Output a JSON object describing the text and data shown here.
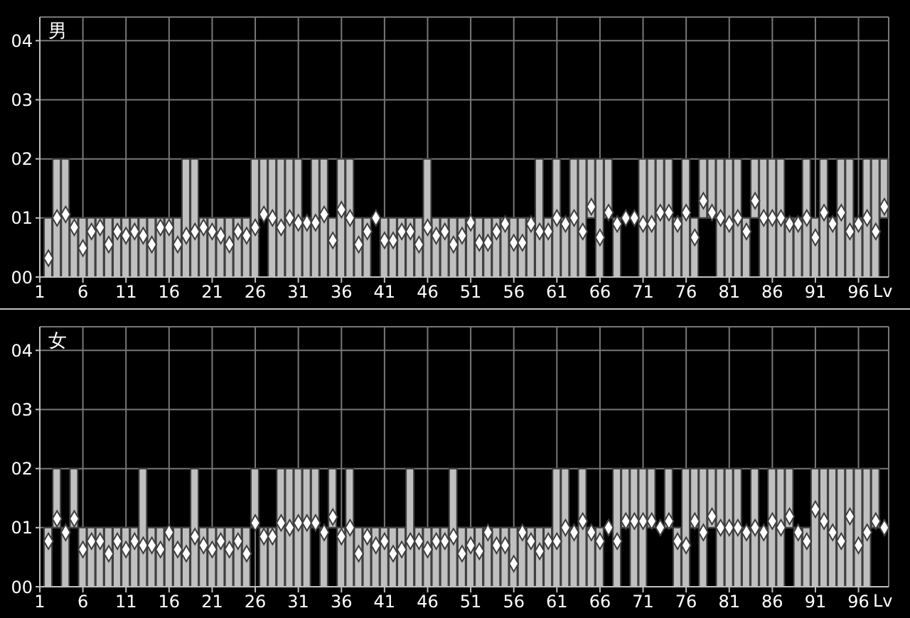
{
  "chart_data": [
    {
      "type": "bar",
      "title": "男",
      "xlabel": "Lv",
      "grid": true,
      "x": [
        2,
        3,
        4,
        5,
        6,
        7,
        8,
        9,
        10,
        11,
        12,
        13,
        14,
        15,
        16,
        17,
        18,
        19,
        20,
        21,
        22,
        23,
        24,
        25,
        26,
        27,
        28,
        29,
        30,
        31,
        32,
        33,
        34,
        35,
        36,
        37,
        38,
        39,
        40,
        41,
        42,
        43,
        44,
        45,
        46,
        47,
        48,
        49,
        50,
        51,
        52,
        53,
        54,
        55,
        56,
        57,
        58,
        59,
        60,
        61,
        62,
        63,
        64,
        65,
        66,
        67,
        68,
        69,
        70,
        71,
        72,
        73,
        74,
        75,
        76,
        77,
        78,
        79,
        80,
        81,
        82,
        83,
        84,
        85,
        86,
        87,
        88,
        89,
        90,
        91,
        92,
        93,
        94,
        95,
        96,
        97,
        98,
        99
      ],
      "xlim": [
        1,
        99.5
      ],
      "xticks": [
        1,
        6,
        11,
        16,
        21,
        26,
        31,
        36,
        41,
        46,
        51,
        56,
        61,
        66,
        71,
        76,
        81,
        86,
        91,
        96
      ],
      "ylim": [
        0,
        4.4
      ],
      "yticks": [
        {
          "value": 0,
          "label": "00"
        },
        {
          "value": 1,
          "label": "01"
        },
        {
          "value": 2,
          "label": "02"
        },
        {
          "value": 3,
          "label": "03"
        },
        {
          "value": 4,
          "label": "04"
        }
      ],
      "series": [
        {
          "color": "#c0c0c0",
          "base": [
            0,
            0,
            0,
            0,
            0,
            0,
            0,
            0,
            0,
            0,
            0,
            0,
            0,
            0,
            0,
            0,
            0,
            0,
            0,
            0,
            0,
            0,
            0,
            0,
            0,
            1,
            0,
            0,
            0,
            0,
            0,
            0,
            0,
            0,
            0,
            0,
            0,
            0,
            null,
            0,
            0,
            0,
            0,
            0,
            0,
            0,
            0,
            0,
            0,
            0,
            0,
            0,
            0,
            0,
            0,
            0,
            0,
            0,
            0,
            0,
            0,
            0,
            0,
            1,
            0,
            1,
            0,
            null,
            null,
            0,
            0,
            0,
            0,
            0,
            0,
            0,
            1,
            1,
            0,
            0,
            0,
            0,
            1,
            0,
            0,
            0,
            0,
            0,
            0,
            0,
            0,
            0,
            0,
            0,
            0,
            0,
            0,
            1
          ],
          "values": [
            1,
            2,
            2,
            1,
            1,
            1,
            1,
            1,
            1,
            1,
            1,
            1,
            1,
            1,
            1,
            1,
            2,
            2,
            1,
            1,
            1,
            1,
            1,
            1,
            2,
            1,
            2,
            2,
            2,
            2,
            1,
            2,
            2,
            1,
            2,
            2,
            1,
            1,
            null,
            1,
            1,
            1,
            1,
            1,
            2,
            1,
            1,
            1,
            1,
            1,
            1,
            1,
            1,
            1,
            1,
            1,
            1,
            2,
            1,
            2,
            1,
            2,
            2,
            1,
            2,
            1,
            1,
            null,
            null,
            2,
            2,
            2,
            2,
            1,
            2,
            1,
            1,
            1,
            2,
            2,
            2,
            1,
            1,
            2,
            2,
            2,
            1,
            1,
            2,
            1,
            2,
            1,
            2,
            2,
            1,
            2,
            2,
            1
          ]
        },
        {
          "type": "scatter",
          "color": "#ffffff",
          "marker": "diamond",
          "values": [
            0.32,
            1.0,
            1.06,
            0.84,
            0.49,
            0.77,
            0.84,
            0.55,
            0.77,
            0.7,
            0.77,
            0.7,
            0.55,
            0.84,
            0.84,
            0.55,
            0.7,
            0.77,
            0.84,
            0.77,
            0.7,
            0.55,
            0.77,
            0.7,
            0.84,
            1.06,
            1.0,
            0.84,
            1.0,
            0.92,
            0.92,
            0.92,
            1.06,
            0.62,
            1.14,
            1.0,
            0.55,
            0.77,
            1.0,
            0.62,
            0.62,
            0.77,
            0.77,
            0.55,
            0.84,
            0.7,
            0.77,
            0.55,
            0.7,
            0.92,
            0.58,
            0.58,
            0.77,
            0.9,
            0.58,
            0.58,
            0.9,
            0.77,
            0.77,
            1.0,
            0.9,
            1.0,
            0.77,
            1.19,
            0.67,
            1.09,
            0.9,
            1.0,
            1.0,
            0.9,
            0.9,
            1.09,
            1.09,
            0.9,
            1.09,
            0.67,
            1.29,
            1.09,
            1.0,
            0.9,
            1.0,
            0.77,
            1.29,
            1.0,
            1.0,
            1.0,
            0.9,
            0.9,
            1.0,
            0.67,
            1.09,
            0.9,
            1.09,
            0.77,
            0.9,
            1.0,
            0.77,
            1.19
          ]
        }
      ]
    },
    {
      "type": "bar",
      "title": "女",
      "xlabel": "Lv",
      "grid": true,
      "x": [
        2,
        3,
        4,
        5,
        6,
        7,
        8,
        9,
        10,
        11,
        12,
        13,
        14,
        15,
        16,
        17,
        18,
        19,
        20,
        21,
        22,
        23,
        24,
        25,
        26,
        27,
        28,
        29,
        30,
        31,
        32,
        33,
        34,
        35,
        36,
        37,
        38,
        39,
        40,
        41,
        42,
        43,
        44,
        45,
        46,
        47,
        48,
        49,
        50,
        51,
        52,
        53,
        54,
        55,
        56,
        57,
        58,
        59,
        60,
        61,
        62,
        63,
        64,
        65,
        66,
        67,
        68,
        69,
        70,
        71,
        72,
        73,
        74,
        75,
        76,
        77,
        78,
        79,
        80,
        81,
        82,
        83,
        84,
        85,
        86,
        87,
        88,
        89,
        90,
        91,
        92,
        93,
        94,
        95,
        96,
        97,
        98,
        99
      ],
      "xlim": [
        1,
        99.5
      ],
      "xticks": [
        1,
        6,
        11,
        16,
        21,
        26,
        31,
        36,
        41,
        46,
        51,
        56,
        61,
        66,
        71,
        76,
        81,
        86,
        91,
        96
      ],
      "ylim": [
        0,
        4.4
      ],
      "yticks": [
        {
          "value": 0,
          "label": "00"
        },
        {
          "value": 1,
          "label": "01"
        },
        {
          "value": 2,
          "label": "02"
        },
        {
          "value": 3,
          "label": "03"
        },
        {
          "value": 4,
          "label": "04"
        }
      ],
      "series": [
        {
          "color": "#c0c0c0",
          "base": [
            0,
            1,
            0,
            1,
            0,
            0,
            0,
            0,
            0,
            0,
            0,
            0,
            0,
            0,
            0,
            0,
            0,
            0,
            0,
            0,
            0,
            0,
            0,
            0,
            1,
            0,
            0,
            0,
            0,
            0,
            0,
            1,
            0,
            1,
            0,
            0,
            0,
            0,
            0,
            0,
            0,
            0,
            0,
            0,
            0,
            0,
            0,
            0,
            0,
            0,
            0,
            0,
            0,
            0,
            0,
            0,
            0,
            0,
            0,
            0,
            0,
            0,
            0,
            0,
            0,
            null,
            0,
            1,
            0,
            0,
            1,
            null,
            1,
            0,
            0,
            1,
            0,
            1,
            0,
            0,
            0,
            0,
            0,
            0,
            0,
            0,
            1,
            0,
            0,
            0,
            0,
            0,
            0,
            0,
            0,
            0,
            1,
            null
          ],
          "values": [
            1,
            1,
            1,
            1,
            1,
            1,
            1,
            1,
            1,
            1,
            1,
            2,
            1,
            1,
            1,
            1,
            1,
            2,
            1,
            1,
            1,
            1,
            1,
            1,
            1,
            1,
            1,
            2,
            2,
            2,
            2,
            1,
            1,
            1,
            1,
            2,
            1,
            1,
            1,
            1,
            1,
            1,
            2,
            1,
            1,
            1,
            1,
            2,
            1,
            1,
            1,
            1,
            1,
            1,
            1,
            1,
            1,
            1,
            1,
            2,
            2,
            1,
            2,
            1,
            1,
            null,
            2,
            1,
            2,
            2,
            1,
            null,
            1,
            1,
            2,
            1,
            2,
            1,
            2,
            2,
            2,
            1,
            2,
            1,
            2,
            2,
            1,
            1,
            1,
            2,
            2,
            2,
            2,
            2,
            2,
            2,
            1,
            null
          ]
        },
        {
          "type": "scatter",
          "color": "#ffffff",
          "marker": "diamond",
          "values": [
            0.77,
            1.15,
            0.92,
            1.15,
            0.63,
            0.77,
            0.77,
            0.56,
            0.77,
            0.63,
            0.77,
            0.7,
            0.7,
            0.63,
            0.92,
            0.63,
            0.56,
            0.85,
            0.7,
            0.63,
            0.77,
            0.63,
            0.77,
            0.56,
            1.08,
            0.85,
            0.85,
            1.08,
            1.0,
            1.08,
            1.08,
            1.08,
            0.92,
            1.18,
            0.85,
            1.0,
            0.56,
            0.85,
            0.7,
            0.77,
            0.56,
            0.63,
            0.77,
            0.77,
            0.63,
            0.77,
            0.77,
            0.85,
            0.56,
            0.7,
            0.6,
            0.92,
            0.7,
            0.7,
            0.39,
            0.92,
            0.77,
            0.6,
            0.77,
            0.77,
            1.0,
            0.92,
            1.11,
            0.92,
            0.77,
            1.0,
            0.77,
            1.11,
            1.11,
            1.11,
            1.11,
            1.0,
            1.11,
            0.77,
            0.7,
            1.11,
            0.92,
            1.19,
            1.0,
            1.0,
            1.0,
            0.92,
            1.0,
            0.92,
            1.11,
            1.0,
            1.19,
            0.92,
            0.77,
            1.31,
            1.11,
            0.92,
            0.77,
            1.19,
            0.7,
            0.92,
            1.11,
            1.0
          ]
        }
      ]
    }
  ]
}
